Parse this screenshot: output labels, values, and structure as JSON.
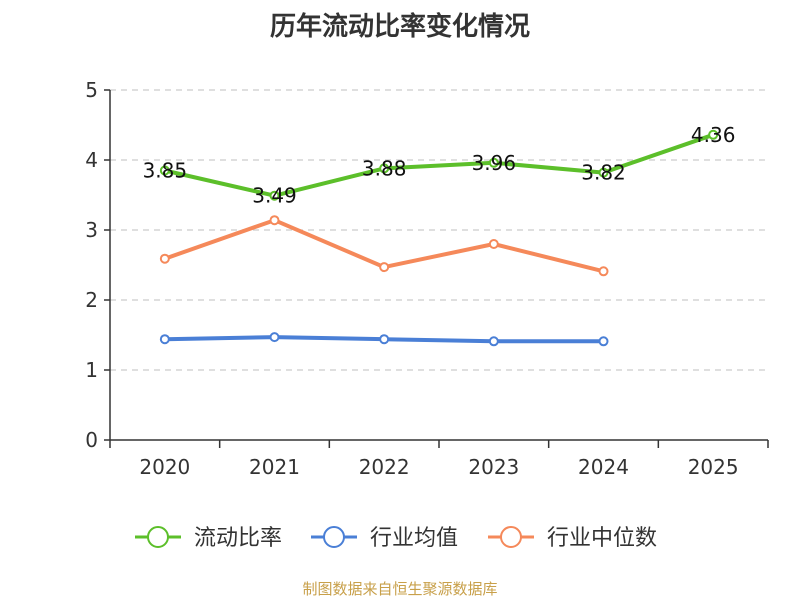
{
  "chart_data": {
    "type": "line",
    "title": "历年流动比率变化情况",
    "categories": [
      "2020",
      "2021",
      "2022",
      "2023",
      "2024",
      "2025"
    ],
    "ylim": [
      0,
      5
    ],
    "yticks": [
      "0",
      "1",
      "2",
      "3",
      "4",
      "5"
    ],
    "grid": true,
    "legend_position": "bottom",
    "series": [
      {
        "name": "流动比率",
        "color": "#5cbf2a",
        "values": [
          3.85,
          3.49,
          3.88,
          3.96,
          3.82,
          4.36
        ],
        "labels": [
          "3.85",
          "3.49",
          "3.88",
          "3.96",
          "3.82",
          "4.36"
        ]
      },
      {
        "name": "行业均值",
        "color": "#4a7fd6",
        "values": [
          1.44,
          1.47,
          1.44,
          1.41,
          1.41,
          null
        ]
      },
      {
        "name": "行业中位数",
        "color": "#f5895a",
        "values": [
          2.59,
          3.14,
          2.47,
          2.8,
          2.41,
          null
        ]
      }
    ]
  },
  "footer": {
    "source": "制图数据来自恒生聚源数据库"
  }
}
